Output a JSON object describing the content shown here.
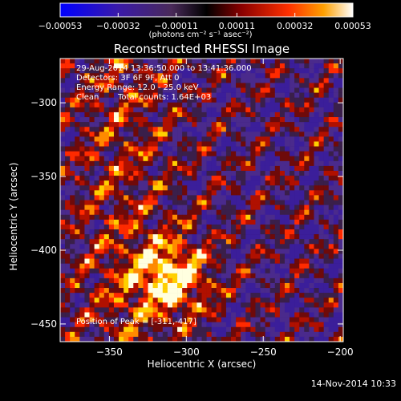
{
  "chart_data": {
    "type": "heatmap",
    "title": "Reconstructed RHESSI Image",
    "xlabel": "Heliocentric X (arcsec)",
    "ylabel": "Heliocentric Y (arcsec)",
    "xlim": [
      -382,
      -198
    ],
    "ylim": [
      -462,
      -270
    ],
    "x_ticks": [
      -350,
      -300,
      -250,
      -200
    ],
    "x_tick_labels": [
      "−350",
      "−300",
      "−250",
      "−200"
    ],
    "y_ticks": [
      -300,
      -350,
      -400,
      -450
    ],
    "y_tick_labels": [
      "−300",
      "−350",
      "−400",
      "−450"
    ],
    "colorbar": {
      "min": -0.00053,
      "max": 0.00053,
      "ticks": [
        -0.00053,
        -0.00032,
        -0.00011,
        0.00011,
        0.00032,
        0.00053
      ],
      "tick_labels": [
        "−0.00053",
        "−0.00032",
        "−0.00011",
        "0.00011",
        "0.00032",
        "0.00053"
      ],
      "label": "(photons cm⁻² s⁻¹ asec⁻²)"
    },
    "annotations": {
      "time_range": "29-Aug-2014 13:36:50.000 to 13:41:36.000",
      "detectors": "Detectors: 3F 6F 9F, Att 0",
      "energy_range": "Energy Range: 12.0 - 25.0 keV",
      "algorithm": "Clean",
      "total_counts": "Total counts: 1.64E+03",
      "peak_position": "Position of Peak = [-311,-417]"
    },
    "peak": {
      "x": -311,
      "y": -417
    }
  },
  "footer": {
    "date": "14-Nov-2014 10:33"
  }
}
